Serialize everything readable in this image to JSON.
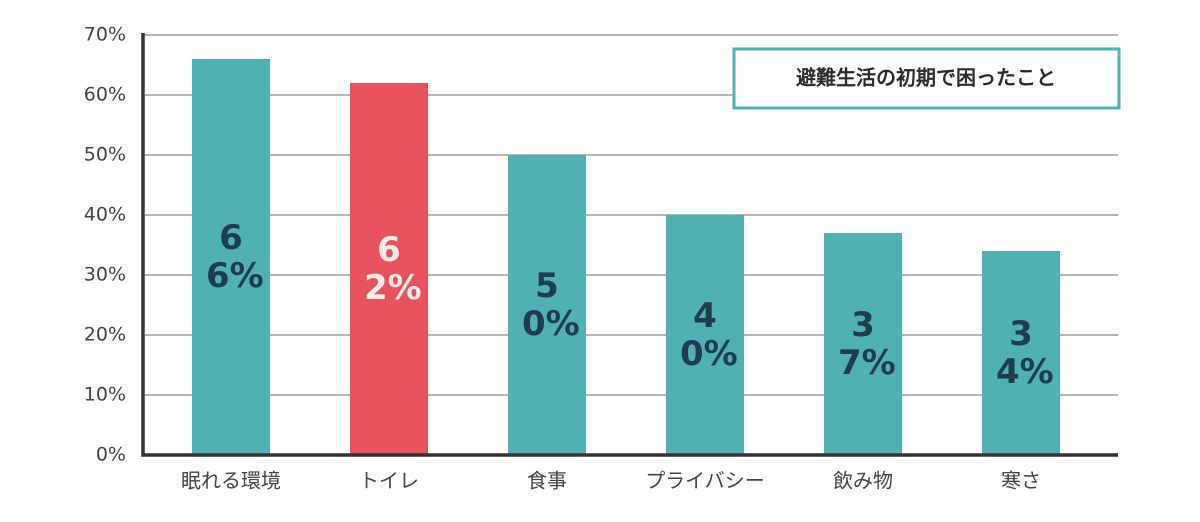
{
  "chart_data": {
    "type": "bar",
    "title": "避難生活の初期で困ったこと",
    "categories": [
      "眠れる環境",
      "トイレ",
      "食事",
      "プライバシー",
      "飲み物",
      "寒さ"
    ],
    "values": [
      66,
      62,
      50,
      40,
      37,
      34
    ],
    "value_labels": [
      "66%",
      "62%",
      "50%",
      "40%",
      "37%",
      "34%"
    ],
    "colors": [
      "#50b1b5",
      "#e8525d",
      "#50b1b5",
      "#50b1b5",
      "#50b1b5",
      "#50b1b5"
    ],
    "ylim": [
      0,
      70
    ],
    "yticks": [
      {
        "value": 0,
        "label": "0%"
      },
      {
        "value": 10,
        "label": "10%"
      },
      {
        "value": 20,
        "label": "20%"
      },
      {
        "value": 30,
        "label": "30%"
      },
      {
        "value": 40,
        "label": "40%"
      },
      {
        "value": 50,
        "label": "50%"
      },
      {
        "value": 60,
        "label": "60%"
      },
      {
        "value": 70,
        "label": "70%"
      }
    ],
    "grid": true
  }
}
